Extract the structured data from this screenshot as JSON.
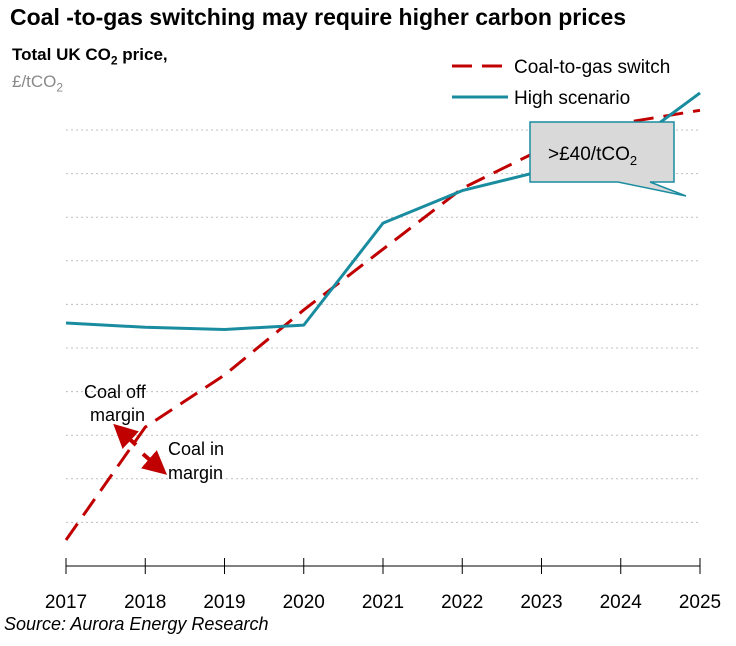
{
  "title": "Coal -to-gas switching may require higher carbon prices",
  "ylabel_main": "Total UK CO",
  "ylabel_main_sub": "2",
  "ylabel_main_suffix": " price,",
  "ylabel_unit": "£/tCO",
  "ylabel_unit_sub": "2",
  "source": "Source: Aurora Energy Research",
  "colors": {
    "switch": "#c00000",
    "high": "#1a8ca0",
    "grid": "#bfbfbf",
    "callout_fill": "#d9d9d9",
    "callout_border": "#1a8ca0"
  },
  "chart_data": {
    "type": "line",
    "x": [
      2017,
      2018,
      2019,
      2020,
      2021,
      2022,
      2023,
      2024,
      2025
    ],
    "y_gridlines": 10,
    "ylim_fraction": [
      0,
      1
    ],
    "grid": "horizontal, dotted",
    "legend_position": "top-right",
    "series": [
      {
        "name": "Coal-to-gas switch",
        "style": "dashed",
        "color": "#c00000",
        "values": [
          0.06,
          0.32,
          0.44,
          0.59,
          0.73,
          0.87,
          0.96,
          1.02,
          1.05
        ]
      },
      {
        "name": "High scenario",
        "style": "solid",
        "color": "#1a8ca0",
        "values": [
          0.56,
          0.55,
          0.545,
          0.555,
          0.79,
          0.865,
          0.91,
          0.955,
          1.09
        ]
      }
    ],
    "annotations": {
      "callout": {
        "text": ">£40/tCO",
        "sub": "2"
      },
      "coal_off_line1": "Coal off",
      "coal_off_line2": "margin",
      "coal_in_line1": "Coal in",
      "coal_in_line2": "margin"
    }
  }
}
